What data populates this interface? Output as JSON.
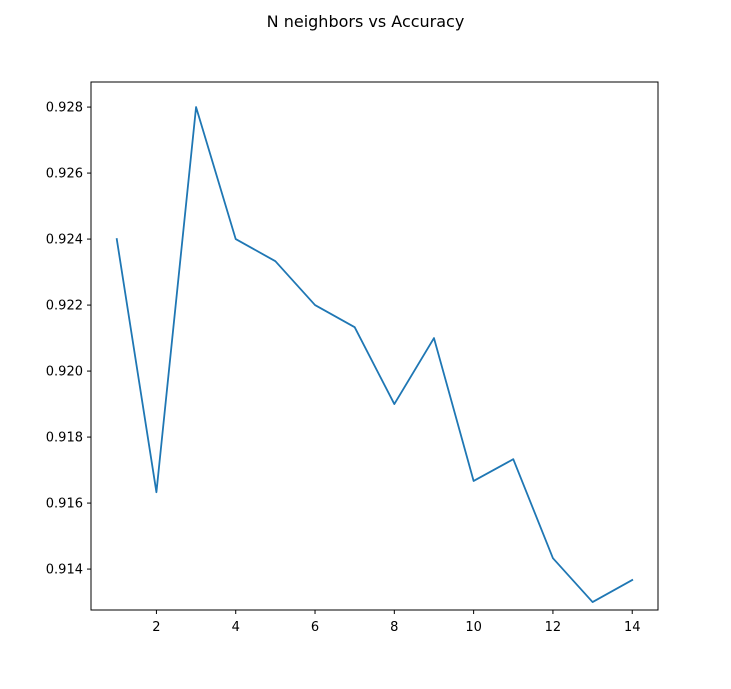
{
  "chart_data": {
    "type": "line",
    "title": "N neighbors vs Accuracy",
    "xlabel": "",
    "ylabel": "",
    "xlim": [
      0.35,
      14.65
    ],
    "ylim": [
      0.91276,
      0.92876
    ],
    "x_ticks": [
      2,
      4,
      6,
      8,
      10,
      12,
      14
    ],
    "y_ticks": [
      0.914,
      0.916,
      0.918,
      0.92,
      0.922,
      0.924,
      0.926,
      0.928
    ],
    "grid": false,
    "series": [
      {
        "color": "#1f77b4",
        "x": [
          1,
          2,
          3,
          4,
          5,
          6,
          7,
          8,
          9,
          10,
          11,
          12,
          13,
          14
        ],
        "y": [
          0.924,
          0.91633,
          0.928,
          0.924,
          0.92333,
          0.922,
          0.92133,
          0.919,
          0.921,
          0.91667,
          0.91733,
          0.91433,
          0.913,
          0.91367
        ]
      }
    ]
  }
}
